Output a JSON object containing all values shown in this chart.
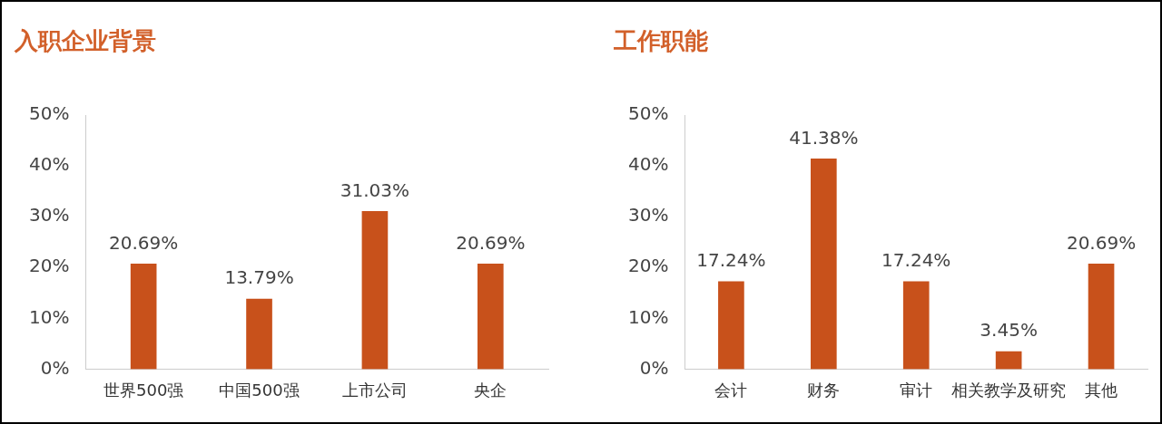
{
  "chart_data": [
    {
      "type": "bar",
      "title": "入职企业背景",
      "categories": [
        "世界500强",
        "中国500强",
        "上市公司",
        "央企"
      ],
      "values": [
        20.69,
        13.79,
        31.03,
        20.69
      ],
      "color": "#c8511b",
      "ylim": [
        0,
        50
      ],
      "yticks": [
        {
          "value": 0,
          "label": "0%"
        },
        {
          "value": 10,
          "label": "10%"
        },
        {
          "value": 20,
          "label": "20%"
        },
        {
          "value": 30,
          "label": "30%"
        },
        {
          "value": 40,
          "label": "40%"
        },
        {
          "value": 50,
          "label": "50%"
        }
      ],
      "value_labels": [
        "20.69%",
        "13.79%",
        "31.03%",
        "20.69%"
      ],
      "grid": false,
      "legend": false
    },
    {
      "type": "bar",
      "title": "工作职能",
      "categories": [
        "会计",
        "财务",
        "审计",
        "相关教学及研究",
        "其他"
      ],
      "values": [
        17.24,
        41.38,
        17.24,
        3.45,
        20.69
      ],
      "color": "#c8511b",
      "ylim": [
        0,
        50
      ],
      "yticks": [
        {
          "value": 0,
          "label": "0%"
        },
        {
          "value": 10,
          "label": "10%"
        },
        {
          "value": 20,
          "label": "20%"
        },
        {
          "value": 30,
          "label": "30%"
        },
        {
          "value": 40,
          "label": "40%"
        },
        {
          "value": 50,
          "label": "50%"
        }
      ],
      "value_labels": [
        "17.24%",
        "41.38%",
        "17.24%",
        "3.45%",
        "20.69%"
      ],
      "grid": false,
      "legend": false
    }
  ]
}
